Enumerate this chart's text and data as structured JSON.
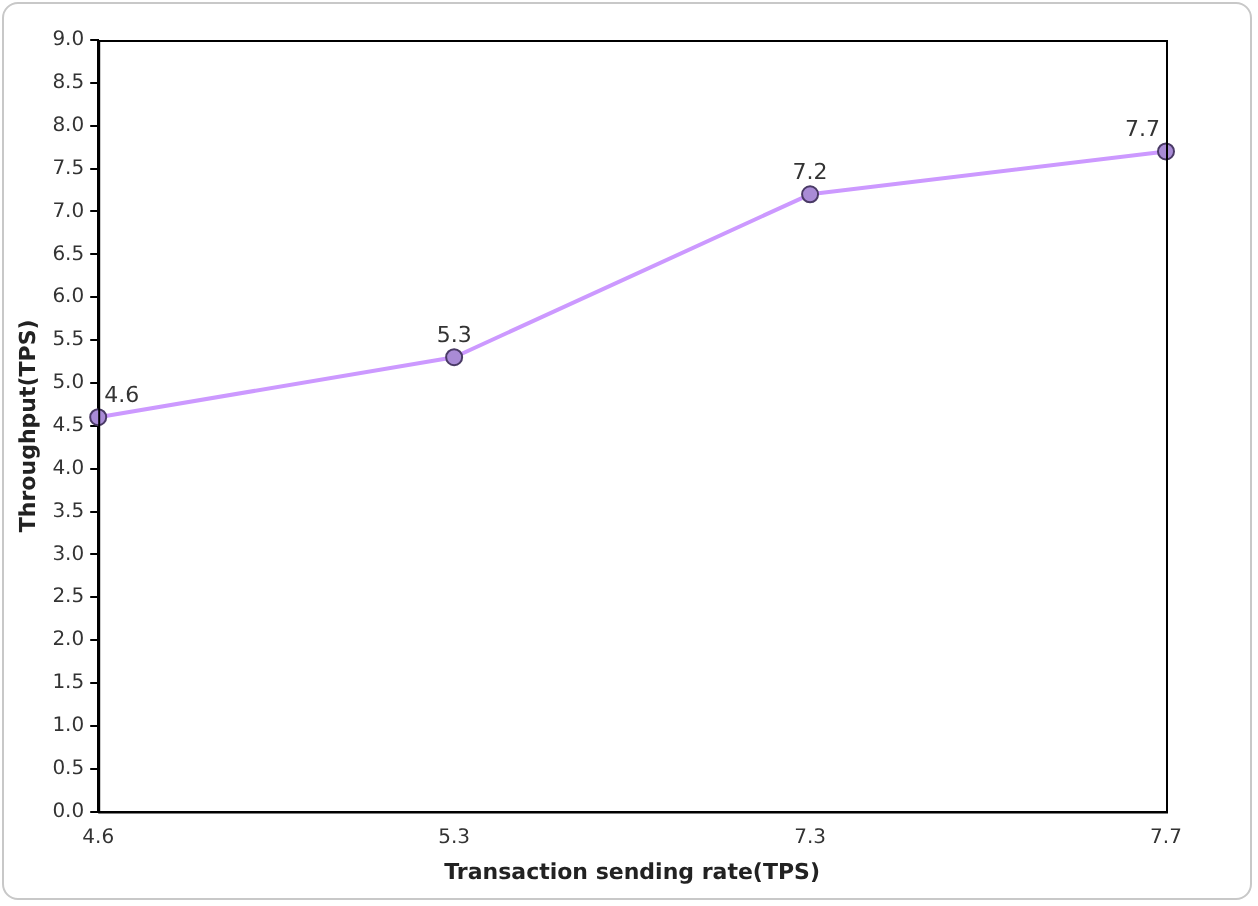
{
  "chart_data": {
    "type": "line",
    "xlabel": "Transaction sending rate(TPS)",
    "ylabel": "Throughput(TPS)",
    "categories": [
      "4.6",
      "5.3",
      "7.3",
      "7.7"
    ],
    "series": [
      {
        "color": "#cc99ff",
        "values": [
          4.6,
          5.3,
          7.2,
          7.7
        ]
      }
    ],
    "ylim": [
      0,
      9
    ],
    "yticks": [
      {
        "value": 0,
        "label": "0.0"
      },
      {
        "value": 0.5,
        "label": "0.5"
      },
      {
        "value": 1,
        "label": "1.0"
      },
      {
        "value": 1.5,
        "label": "1.5"
      },
      {
        "value": 2,
        "label": "2.0"
      },
      {
        "value": 2.5,
        "label": "2.5"
      },
      {
        "value": 3,
        "label": "3.0"
      },
      {
        "value": 3.5,
        "label": "3.5"
      },
      {
        "value": 4,
        "label": "4.0"
      },
      {
        "value": 4.5,
        "label": "4.5"
      },
      {
        "value": 5,
        "label": "5.0"
      },
      {
        "value": 5.5,
        "label": "5.5"
      },
      {
        "value": 6,
        "label": "6.0"
      },
      {
        "value": 6.5,
        "label": "6.5"
      },
      {
        "value": 7,
        "label": "7.0"
      },
      {
        "value": 7.5,
        "label": "7.5"
      },
      {
        "value": 8,
        "label": "8.0"
      },
      {
        "value": 8.5,
        "label": "8.5"
      },
      {
        "value": 9,
        "label": "9.0"
      }
    ],
    "data_labels": true,
    "marker": "circle",
    "line_style": "solid",
    "grid": false,
    "legend": false
  }
}
